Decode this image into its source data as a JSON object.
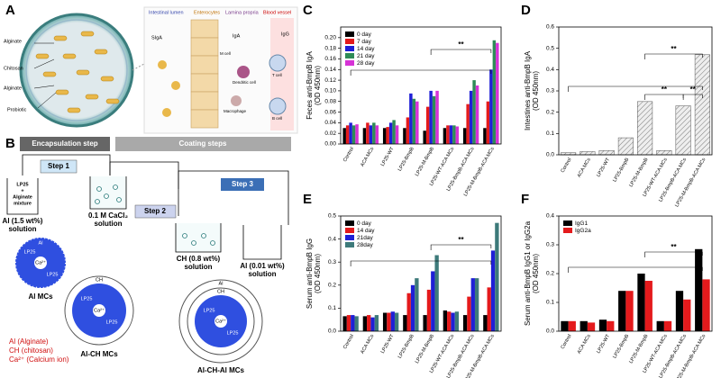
{
  "panel_a": {
    "label": "A",
    "capsule_labels": [
      "Alginate",
      "Chitosan",
      "Alginate",
      "Probiotic"
    ],
    "regions": [
      "Intestinal lumen",
      "Enterocytes",
      "Lamina propria",
      "Blood vessel"
    ],
    "antibodies": [
      "SIgA",
      "IgA",
      "IgG"
    ],
    "cells": [
      "M cell",
      "Dendritic cell",
      "Macrophage",
      "T cell",
      "B cell"
    ]
  },
  "panel_b": {
    "label": "B",
    "phases": [
      "Encapsulation step",
      "Coating steps"
    ],
    "steps": [
      "Step 1",
      "Step 2",
      "Step 3"
    ],
    "beakers": [
      {
        "content": [
          "LP25",
          "+",
          "Alginate",
          "mixture"
        ],
        "caption": [
          "Al (1.5 wt%)",
          "solution"
        ]
      },
      {
        "caption": [
          "0.1 M CaCl₂",
          "solution"
        ]
      },
      {
        "caption": [
          "CH (0.8 wt%)",
          "solution"
        ]
      },
      {
        "caption": [
          "Al (0.01 wt%)",
          "solution"
        ]
      }
    ],
    "particles": [
      "Al MCs",
      "Al-CH MCs",
      "Al-CH-Al MCs"
    ],
    "particle_text": {
      "core": "LP25",
      "ion": "Ca²⁺",
      "al": "Al",
      "ch": "CH"
    },
    "legend": [
      "Al (Alginate)",
      "CH (chitosan)",
      "Ca²⁺ (Calcium ion)"
    ]
  },
  "chart_data": [
    {
      "type": "bar",
      "label": "C",
      "ylabel": [
        "Feces anti-BmpB IgA",
        "(OD 450nm)"
      ],
      "categories": [
        "Control",
        "ACA MCs",
        "LP25-WT",
        "LP25-BmpB",
        "LP25-M-BmpB",
        "LP25-WT-ACA MCs",
        "LP25-BmpB-ACA MCs",
        "LP25-M-BmpB-ACA MCs"
      ],
      "series": [
        {
          "name": "0 day",
          "color": "#000000",
          "values": [
            0.03,
            0.03,
            0.03,
            0.03,
            0.025,
            0.03,
            0.03,
            0.03
          ]
        },
        {
          "name": "7 day",
          "color": "#e41a1c",
          "values": [
            0.035,
            0.04,
            0.032,
            0.05,
            0.07,
            0.035,
            0.075,
            0.08
          ]
        },
        {
          "name": "14 day",
          "color": "#1f1fd6",
          "values": [
            0.04,
            0.035,
            0.04,
            0.095,
            0.1,
            0.035,
            0.1,
            0.14
          ]
        },
        {
          "name": "21 day",
          "color": "#2e8b57",
          "values": [
            0.035,
            0.04,
            0.045,
            0.085,
            0.09,
            0.035,
            0.12,
            0.195
          ]
        },
        {
          "name": "28 day",
          "color": "#d633d6",
          "values": [
            0.037,
            0.035,
            0.035,
            0.08,
            0.1,
            0.033,
            0.11,
            0.19
          ]
        }
      ],
      "ylim": [
        0,
        0.22
      ],
      "yticks": [
        {
          "value": 0,
          "label": "0.00"
        },
        {
          "value": 0.02,
          "label": "0.02"
        },
        {
          "value": 0.04,
          "label": "0.04"
        },
        {
          "value": 0.06,
          "label": "0.06"
        },
        {
          "value": 0.08,
          "label": "0.08"
        },
        {
          "value": 0.1,
          "label": "0.10"
        },
        {
          "value": 0.12,
          "label": "0.12"
        },
        {
          "value": 0.14,
          "label": "0.14"
        },
        {
          "value": 0.16,
          "label": "0.16"
        },
        {
          "value": 0.18,
          "label": "0.18"
        },
        {
          "value": 0.2,
          "label": "0.20"
        }
      ],
      "annotations": [
        "**"
      ],
      "legend": "upper left"
    },
    {
      "type": "bar",
      "label": "D",
      "ylabel": [
        "Intestines anti-BmpB IgA",
        "(OD 450nm)"
      ],
      "categories": [
        "Control",
        "ACA MCs",
        "LP25-WT",
        "LP25-BmpB",
        "LP25-M-BmpB",
        "LP25-WT-ACA MCs",
        "LP25-BmpB-ACA MCs",
        "LP25-M-BmpB-ACA MCs"
      ],
      "series": [
        {
          "color": "#e6e6e6",
          "hatch": true,
          "values": [
            0.01,
            0.015,
            0.02,
            0.08,
            0.25,
            0.02,
            0.23,
            0.47
          ]
        }
      ],
      "ylim": [
        0,
        0.6
      ],
      "yticks": [
        {
          "value": 0,
          "label": "0.0"
        },
        {
          "value": 0.1,
          "label": "0.1"
        },
        {
          "value": 0.2,
          "label": "0.2"
        },
        {
          "value": 0.3,
          "label": "0.3"
        },
        {
          "value": 0.4,
          "label": "0.4"
        },
        {
          "value": 0.5,
          "label": "0.5"
        },
        {
          "value": 0.6,
          "label": "0.6"
        }
      ],
      "annotations": [
        "**",
        "**",
        "**"
      ]
    },
    {
      "type": "bar",
      "label": "E",
      "ylabel": [
        "Serum anti-BmpB IgG",
        "(OD 450nm)"
      ],
      "categories": [
        "Control",
        "ACA MCs",
        "LP25-WT",
        "LP25-BmpB",
        "LP25-M-BmpB",
        "LP25-WT-ACA MCs",
        "LP25-BmpB-ACA MCs",
        "LP25-M-BmpB-ACA MCs"
      ],
      "series": [
        {
          "name": "0 day",
          "color": "#000000",
          "values": [
            0.065,
            0.065,
            0.08,
            0.07,
            0.07,
            0.09,
            0.07,
            0.07
          ]
        },
        {
          "name": "14 day",
          "color": "#e41a1c",
          "values": [
            0.07,
            0.07,
            0.08,
            0.165,
            0.18,
            0.085,
            0.15,
            0.19
          ]
        },
        {
          "name": "21day",
          "color": "#1f1fd6",
          "values": [
            0.07,
            0.06,
            0.085,
            0.2,
            0.26,
            0.08,
            0.23,
            0.35
          ]
        },
        {
          "name": "28day",
          "color": "#3d7a7a",
          "values": [
            0.065,
            0.07,
            0.08,
            0.23,
            0.33,
            0.085,
            0.23,
            0.47
          ]
        }
      ],
      "ylim": [
        0,
        0.5
      ],
      "yticks": [
        {
          "value": 0,
          "label": "0.0"
        },
        {
          "value": 0.1,
          "label": "0.1"
        },
        {
          "value": 0.2,
          "label": "0.2"
        },
        {
          "value": 0.3,
          "label": "0.3"
        },
        {
          "value": 0.4,
          "label": "0.4"
        },
        {
          "value": 0.5,
          "label": "0.5"
        }
      ],
      "annotations": [
        "**"
      ],
      "legend": "upper left"
    },
    {
      "type": "bar",
      "label": "F",
      "ylabel": [
        "Serum anti-BmpB IgG1 or IgG2a",
        "(OD 450nm)"
      ],
      "categories": [
        "Control",
        "ACA MCs",
        "LP25-WT",
        "LP25-BmpB",
        "LP25-M-BmpB",
        "LP25-WT-ACA MCs",
        "LP25-BmpB-ACA MCs",
        "LP25-M-BmpB-ACA MCs"
      ],
      "series": [
        {
          "name": "IgG1",
          "color": "#000000",
          "values": [
            0.035,
            0.035,
            0.04,
            0.14,
            0.2,
            0.035,
            0.14,
            0.285
          ]
        },
        {
          "name": "IgG2a",
          "color": "#e41a1c",
          "values": [
            0.035,
            0.03,
            0.035,
            0.14,
            0.175,
            0.035,
            0.11,
            0.18
          ]
        }
      ],
      "ylim": [
        0,
        0.4
      ],
      "yticks": [
        {
          "value": 0,
          "label": "0.0"
        },
        {
          "value": 0.1,
          "label": "0.1"
        },
        {
          "value": 0.2,
          "label": "0.2"
        },
        {
          "value": 0.3,
          "label": "0.3"
        },
        {
          "value": 0.4,
          "label": "0.4"
        }
      ],
      "annotations": [
        "**"
      ],
      "legend": "upper left"
    }
  ]
}
